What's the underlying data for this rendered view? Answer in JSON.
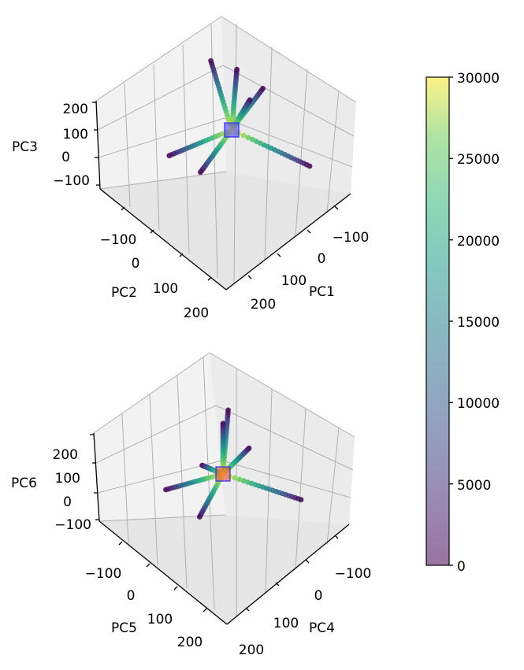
{
  "chart_data": [
    {
      "type": "scatter",
      "subtype": "3d-scatter",
      "axes": {
        "x": {
          "label": "PC1",
          "ticks": [
            "−100",
            "0",
            "100",
            "200"
          ]
        },
        "y": {
          "label": "PC2",
          "ticks": [
            "−100",
            "0",
            "100",
            "200"
          ]
        },
        "z": {
          "label": "PC3",
          "ticks": [
            "200",
            "100",
            "0",
            "−100"
          ]
        }
      },
      "ray_directions": [
        {
          "x": -110,
          "y": -130,
          "z": 110
        },
        {
          "x": -140,
          "y": -60,
          "z": 170
        },
        {
          "x": -60,
          "y": -180,
          "z": 30
        },
        {
          "x": 210,
          "y": -90,
          "z": -80
        },
        {
          "x": -20,
          "y": 100,
          "z": -130
        },
        {
          "x": -80,
          "y": 160,
          "z": -60
        },
        {
          "x": 30,
          "y": -40,
          "z": 120
        }
      ],
      "marker": {
        "shape": "square",
        "color": "#3b3bff"
      },
      "color_by": "sample_index"
    },
    {
      "type": "scatter",
      "subtype": "3d-scatter",
      "axes": {
        "x": {
          "label": "PC4",
          "ticks": [
            "−100",
            "0",
            "100",
            "200"
          ]
        },
        "y": {
          "label": "PC5",
          "ticks": [
            "−100",
            "0",
            "100",
            "200"
          ]
        },
        "z": {
          "label": "PC6",
          "ticks": [
            "200",
            "100",
            "0",
            "−100"
          ]
        }
      },
      "ray_directions": [
        {
          "x": -80,
          "y": -100,
          "z": 160
        },
        {
          "x": -110,
          "y": -110,
          "z": 80
        },
        {
          "x": -30,
          "y": 190,
          "z": 30
        },
        {
          "x": 80,
          "y": 170,
          "z": -30
        },
        {
          "x": 190,
          "y": -110,
          "z": -60
        },
        {
          "x": -120,
          "y": -40,
          "z": -60
        },
        {
          "x": -40,
          "y": -140,
          "z": 0
        }
      ],
      "marker": {
        "shape": "square",
        "color": "#e83a3a"
      },
      "color_by": "sample_index"
    }
  ],
  "colorbar": {
    "min": 0,
    "max": 30000,
    "ticks": [
      "30000",
      "25000",
      "20000",
      "15000",
      "10000",
      "5000",
      "0"
    ],
    "colormap": "viridis",
    "alpha": 0.5
  },
  "colors": {
    "pane_left": "#f2f2f2",
    "pane_right": "#ebebeb",
    "pane_floor": "#e6e6e6",
    "grid": "#b0b0b0"
  }
}
